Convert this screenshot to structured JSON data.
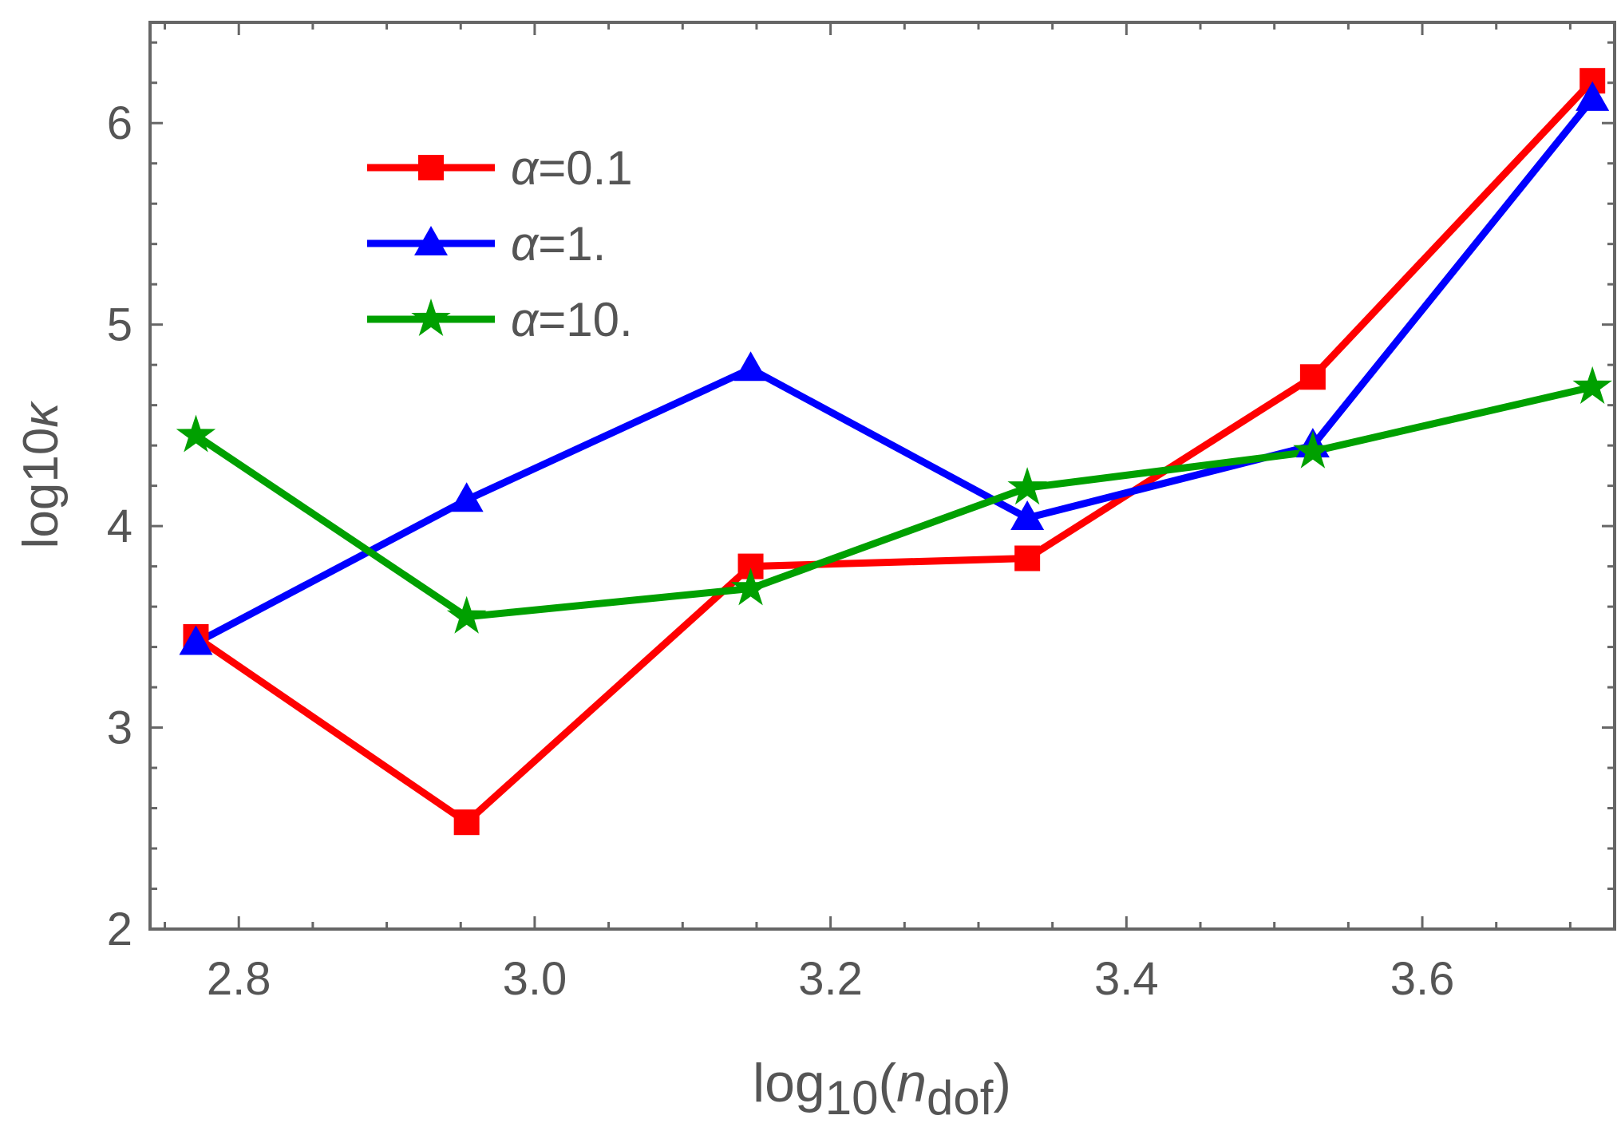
{
  "chart_data": {
    "type": "line",
    "title": "",
    "xlabel": {
      "prefix": "log",
      "sub": "10",
      "open": "(",
      "var": "n",
      "var_sub": "dof",
      "close": ")"
    },
    "ylabel": {
      "prefix": "log",
      "sub": "10",
      "var": "κ"
    },
    "xlim": [
      2.74,
      3.73
    ],
    "ylim": [
      2,
      6.5
    ],
    "xticks": [
      "2.8",
      "3.0",
      "3.2",
      "3.4",
      "3.6"
    ],
    "xtick_values": [
      2.8,
      3.0,
      3.2,
      3.4,
      3.6
    ],
    "yticks": [
      "2",
      "3",
      "4",
      "5",
      "6"
    ],
    "ytick_values": [
      2,
      3,
      4,
      5,
      6
    ],
    "grid": false,
    "legend_position": "top-left",
    "x": [
      2.771,
      2.954,
      3.146,
      3.333,
      3.526,
      3.715
    ],
    "series": [
      {
        "name": "α=0.1",
        "greek": "α",
        "value_text": "=0.1",
        "color": "#ff0000",
        "marker": "square",
        "values": [
          3.45,
          2.53,
          3.8,
          3.84,
          4.74,
          6.21
        ]
      },
      {
        "name": "α=1.",
        "greek": "α",
        "value_text": "=1.",
        "color": "#0000ff",
        "marker": "triangle",
        "values": [
          3.42,
          4.13,
          4.78,
          4.04,
          4.4,
          6.12
        ]
      },
      {
        "name": "α=10.",
        "greek": "α",
        "value_text": "=10.",
        "color": "#00a000",
        "marker": "star",
        "values": [
          4.45,
          3.55,
          3.69,
          4.19,
          4.37,
          4.69
        ]
      }
    ]
  }
}
